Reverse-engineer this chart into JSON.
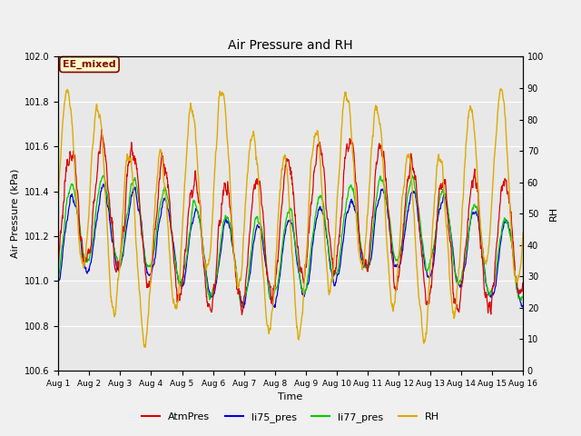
{
  "title": "Air Pressure and RH",
  "xlabel": "Time",
  "ylabel_left": "Air Pressure (kPa)",
  "ylabel_right": "RH",
  "ylim_left": [
    100.6,
    102.0
  ],
  "ylim_right": [
    0,
    100
  ],
  "yticks_left": [
    100.6,
    100.8,
    101.0,
    101.2,
    101.4,
    101.6,
    101.8,
    102.0
  ],
  "yticks_right": [
    0,
    10,
    20,
    30,
    40,
    50,
    60,
    70,
    80,
    90,
    100
  ],
  "xtick_labels": [
    "Aug 1",
    "Aug 2",
    "Aug 3",
    "Aug 4",
    "Aug 5",
    "Aug 6",
    "Aug 7",
    "Aug 8",
    "Aug 9",
    "Aug 10",
    "Aug 11",
    "Aug 12",
    "Aug 13",
    "Aug 14",
    "Aug 15",
    "Aug 16"
  ],
  "colors": {
    "AtmPres": "#dd0000",
    "li75_pres": "#0000dd",
    "li77_pres": "#00cc00",
    "RH": "#ddaa00"
  },
  "tag_label": "EE_mixed",
  "tag_color": "#880000",
  "tag_bg": "#ffffcc",
  "fig_bg": "#f0f0f0",
  "plot_bg": "#e8e8e8",
  "grid_color": "#ffffff",
  "n_days": 15,
  "points_per_day": 96,
  "seed": 12345
}
